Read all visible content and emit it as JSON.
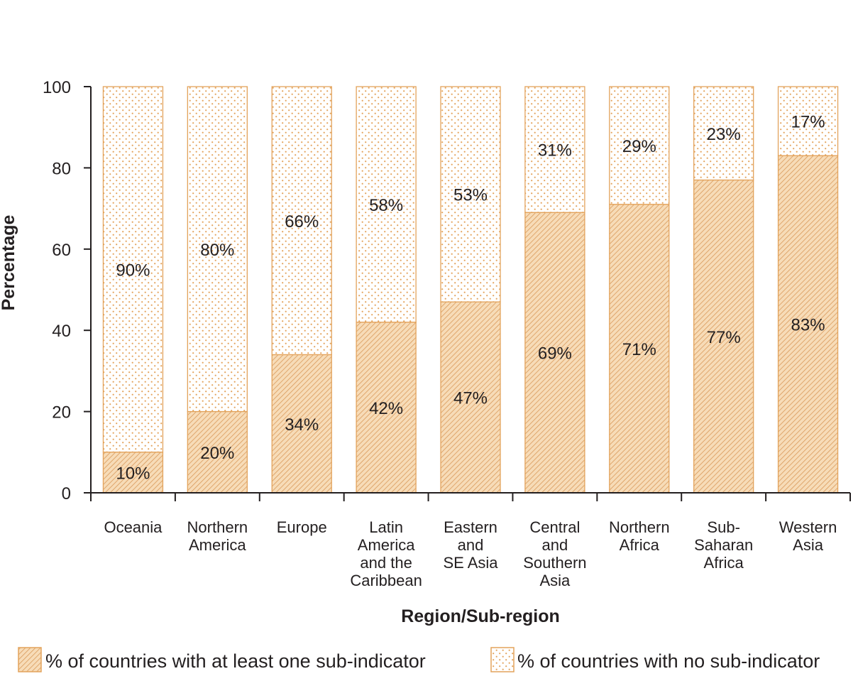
{
  "chart_data": {
    "type": "bar",
    "stacked": true,
    "percent_stacked": true,
    "title": "",
    "xlabel": "Region/Sub-region",
    "ylabel": "Percentage",
    "ylim": [
      0,
      100
    ],
    "yticks": [
      0,
      20,
      40,
      60,
      80,
      100
    ],
    "grid": false,
    "legend_position": "bottom",
    "categories": [
      [
        "Oceania"
      ],
      [
        "Northern",
        "America"
      ],
      [
        "Europe"
      ],
      [
        "Latin",
        "America",
        "and the",
        "Caribbean"
      ],
      [
        "Eastern",
        "and",
        "SE Asia"
      ],
      [
        "Central",
        "and",
        "Southern",
        "Asia"
      ],
      [
        "Northern",
        "Africa"
      ],
      [
        "Sub-",
        "Saharan",
        "Africa"
      ],
      [
        "Western",
        "Asia"
      ]
    ],
    "series": [
      {
        "name": "% of countries with at least one sub-indicator",
        "pattern": "hatch",
        "color": "#e8a95c",
        "values": [
          10,
          20,
          34,
          42,
          47,
          69,
          71,
          77,
          83
        ],
        "labels": [
          "10%",
          "20%",
          "34%",
          "42%",
          "47%",
          "69%",
          "71%",
          "77%",
          "83%"
        ]
      },
      {
        "name": "% of countries with no sub-indicator",
        "pattern": "dots",
        "color": "#e8a95c",
        "values": [
          90,
          80,
          66,
          58,
          53,
          31,
          29,
          23,
          17
        ],
        "labels": [
          "90%",
          "80%",
          "66%",
          "58%",
          "53%",
          "31%",
          "29%",
          "23%",
          "17%"
        ]
      }
    ]
  }
}
